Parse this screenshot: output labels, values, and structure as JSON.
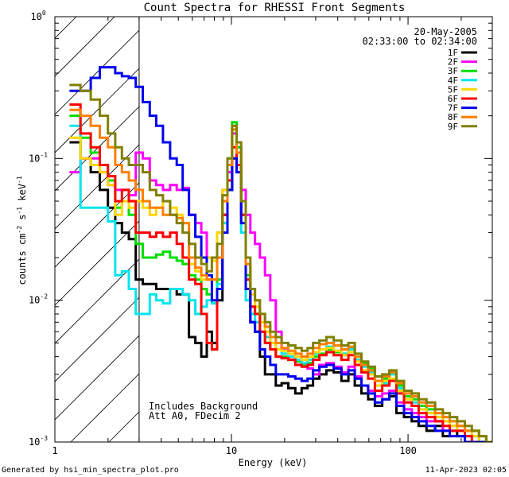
{
  "chart_data": {
    "type": "line",
    "title": "Count Spectra for RHESSI Front Segments",
    "xlabel": "Energy (keV)",
    "ylabel_parts": [
      "counts cm",
      "-2",
      " s",
      "-1",
      " keV",
      "-1"
    ],
    "xscale": "log",
    "yscale": "log",
    "xlim": [
      1,
      300
    ],
    "ylim": [
      0.001,
      1
    ],
    "x_ticks": [
      {
        "value": 1,
        "label": "1"
      },
      {
        "value": 10,
        "label": "10"
      },
      {
        "value": 100,
        "label": "100"
      }
    ],
    "y_ticks": [
      {
        "value": 0.001,
        "base": "10",
        "exp": "-3"
      },
      {
        "value": 0.01,
        "base": "10",
        "exp": "-2"
      },
      {
        "value": 0.1,
        "base": "10",
        "exp": "-1"
      },
      {
        "value": 1,
        "base": "10",
        "exp": "0"
      }
    ],
    "date": "20-May-2005",
    "time_range": "02:33:00 to 02:34:00",
    "shaded_region_keV": [
      1,
      3
    ],
    "annotations": [
      "Includes Background",
      "Att A0, FDecim 2"
    ],
    "footer_left": "Generated by hsi_min_spectra_plot.pro",
    "footer_right": "11-Apr-2023 02:05",
    "energy_bins": [
      1.3,
      1.5,
      1.7,
      1.9,
      2.1,
      2.3,
      2.5,
      2.75,
      3.0,
      3.3,
      3.6,
      3.9,
      4.3,
      4.7,
      5.1,
      5.5,
      6.0,
      6.5,
      7.0,
      7.5,
      8.0,
      8.6,
      9.2,
      9.8,
      10.4,
      11.0,
      11.7,
      12.4,
      13.2,
      14.0,
      15.0,
      16.0,
      17.2,
      18.5,
      20,
      22,
      24,
      26,
      28,
      30,
      33,
      36,
      40,
      44,
      48,
      52,
      57,
      62,
      68,
      75,
      82,
      90,
      100,
      110,
      120,
      135,
      150,
      165,
      180,
      200,
      220,
      240,
      265,
      290
    ],
    "series": [
      {
        "name": "1F",
        "color": "#000000",
        "values": [
          0.13,
          0.1,
          0.08,
          0.06,
          0.045,
          0.035,
          0.03,
          0.027,
          0.014,
          0.013,
          0.013,
          0.012,
          0.012,
          0.012,
          0.011,
          0.011,
          0.0055,
          0.005,
          0.004,
          0.006,
          0.005,
          0.01,
          0.04,
          0.06,
          0.1,
          0.09,
          0.04,
          0.012,
          0.007,
          0.006,
          0.004,
          0.003,
          0.003,
          0.0025,
          0.0026,
          0.0024,
          0.0022,
          0.0024,
          0.0025,
          0.0028,
          0.003,
          0.0032,
          0.0031,
          0.0027,
          0.003,
          0.0025,
          0.0022,
          0.002,
          0.0018,
          0.002,
          0.0021,
          0.0016,
          0.0015,
          0.0014,
          0.0013,
          0.0012,
          0.0013,
          0.0011,
          0.0012,
          0.0011,
          0.001,
          0.001,
          0.001,
          0.001
        ]
      },
      {
        "name": "2F",
        "color": "#ff00ff",
        "values": [
          0.08,
          0.1,
          0.1,
          0.08,
          0.065,
          0.06,
          0.06,
          0.055,
          0.11,
          0.1,
          0.07,
          0.065,
          0.06,
          0.065,
          0.06,
          0.062,
          0.04,
          0.035,
          0.03,
          0.02,
          0.02,
          0.03,
          0.06,
          0.08,
          0.15,
          0.12,
          0.06,
          0.04,
          0.03,
          0.025,
          0.02,
          0.015,
          0.01,
          0.006,
          0.0045,
          0.004,
          0.0037,
          0.0035,
          0.0033,
          0.003,
          0.0035,
          0.0036,
          0.0034,
          0.0031,
          0.0034,
          0.0029,
          0.0025,
          0.0023,
          0.0021,
          0.0022,
          0.0023,
          0.0019,
          0.0017,
          0.0016,
          0.0015,
          0.0014,
          0.0014,
          0.0012,
          0.0013,
          0.0012,
          0.0011,
          0.0011,
          0.001,
          0.001
        ]
      },
      {
        "name": "3F",
        "color": "#00dd00",
        "values": [
          0.2,
          0.14,
          0.11,
          0.09,
          0.07,
          0.045,
          0.05,
          0.04,
          0.025,
          0.02,
          0.02,
          0.021,
          0.022,
          0.02,
          0.019,
          0.018,
          0.015,
          0.014,
          0.012,
          0.011,
          0.01,
          0.014,
          0.05,
          0.1,
          0.18,
          0.12,
          0.05,
          0.015,
          0.009,
          0.008,
          0.006,
          0.005,
          0.0045,
          0.004,
          0.004,
          0.0038,
          0.0037,
          0.0035,
          0.0036,
          0.004,
          0.0042,
          0.0045,
          0.0043,
          0.0041,
          0.0046,
          0.004,
          0.0036,
          0.0033,
          0.0027,
          0.0028,
          0.0031,
          0.0025,
          0.0021,
          0.002,
          0.0018,
          0.0017,
          0.0016,
          0.0015,
          0.0014,
          0.0013,
          0.0012,
          0.0012,
          0.0011,
          0.001
        ]
      },
      {
        "name": "4F",
        "color": "#00e5ee",
        "values": [
          0.17,
          0.045,
          0.045,
          0.045,
          0.036,
          0.015,
          0.016,
          0.012,
          0.008,
          0.008,
          0.011,
          0.01,
          0.0095,
          0.012,
          0.012,
          0.011,
          0.01,
          0.008,
          0.009,
          0.01,
          0.0095,
          0.013,
          0.035,
          0.07,
          0.12,
          0.08,
          0.03,
          0.01,
          0.008,
          0.007,
          0.006,
          0.0055,
          0.005,
          0.0045,
          0.0042,
          0.004,
          0.0038,
          0.0036,
          0.0038,
          0.0042,
          0.0045,
          0.0047,
          0.0044,
          0.0042,
          0.0045,
          0.0038,
          0.0034,
          0.0031,
          0.0025,
          0.0026,
          0.003,
          0.0024,
          0.002,
          0.0019,
          0.0017,
          0.0016,
          0.0015,
          0.0014,
          0.0013,
          0.0012,
          0.0012,
          0.0011,
          0.001,
          0.001
        ]
      },
      {
        "name": "5F",
        "color": "#ffd700",
        "values": [
          0.14,
          0.1,
          0.09,
          0.08,
          0.065,
          0.04,
          0.05,
          0.045,
          0.05,
          0.045,
          0.04,
          0.045,
          0.05,
          0.045,
          0.04,
          0.035,
          0.018,
          0.016,
          0.014,
          0.02,
          0.019,
          0.03,
          0.06,
          0.09,
          0.16,
          0.11,
          0.05,
          0.018,
          0.011,
          0.009,
          0.007,
          0.006,
          0.005,
          0.0045,
          0.0044,
          0.0042,
          0.004,
          0.0038,
          0.004,
          0.0043,
          0.0045,
          0.0046,
          0.0044,
          0.0041,
          0.0043,
          0.0037,
          0.0032,
          0.003,
          0.0025,
          0.0027,
          0.0028,
          0.0023,
          0.002,
          0.0018,
          0.0017,
          0.0016,
          0.0015,
          0.0014,
          0.0013,
          0.0012,
          0.0012,
          0.0011,
          0.001,
          0.001
        ]
      },
      {
        "name": "6F",
        "color": "#ff0000",
        "values": [
          0.24,
          0.15,
          0.12,
          0.09,
          0.075,
          0.05,
          0.06,
          0.05,
          0.03,
          0.03,
          0.028,
          0.03,
          0.028,
          0.03,
          0.025,
          0.02,
          0.014,
          0.013,
          0.008,
          0.005,
          0.0045,
          0.012,
          0.04,
          0.07,
          0.12,
          0.09,
          0.04,
          0.014,
          0.009,
          0.008,
          0.006,
          0.005,
          0.0045,
          0.004,
          0.0039,
          0.0038,
          0.0035,
          0.0034,
          0.0035,
          0.0038,
          0.0041,
          0.0043,
          0.0041,
          0.0038,
          0.0041,
          0.0035,
          0.0031,
          0.0028,
          0.0023,
          0.0025,
          0.0027,
          0.0022,
          0.0019,
          0.0018,
          0.0016,
          0.0015,
          0.0014,
          0.0013,
          0.0012,
          0.0012,
          0.0011,
          0.001,
          0.001,
          0.001
        ]
      },
      {
        "name": "7F",
        "color": "#0000ee",
        "values": [
          0.3,
          0.3,
          0.37,
          0.44,
          0.44,
          0.4,
          0.38,
          0.37,
          0.32,
          0.25,
          0.2,
          0.17,
          0.13,
          0.1,
          0.09,
          0.06,
          0.04,
          0.028,
          0.02,
          0.015,
          0.01,
          0.012,
          0.03,
          0.06,
          0.1,
          0.08,
          0.035,
          0.012,
          0.007,
          0.006,
          0.0045,
          0.004,
          0.0035,
          0.003,
          0.003,
          0.0029,
          0.0028,
          0.0027,
          0.0028,
          0.0032,
          0.0034,
          0.0035,
          0.0033,
          0.003,
          0.0032,
          0.0028,
          0.0025,
          0.0022,
          0.0019,
          0.002,
          0.0022,
          0.0018,
          0.0016,
          0.0015,
          0.0014,
          0.0013,
          0.0012,
          0.0012,
          0.0011,
          0.0011,
          0.001,
          0.001,
          0.001,
          0.001
        ]
      },
      {
        "name": "8F",
        "color": "#ff7f00",
        "values": [
          0.22,
          0.2,
          0.17,
          0.14,
          0.12,
          0.09,
          0.08,
          0.07,
          0.06,
          0.05,
          0.045,
          0.045,
          0.04,
          0.04,
          0.038,
          0.035,
          0.02,
          0.017,
          0.015,
          0.014,
          0.014,
          0.02,
          0.05,
          0.09,
          0.16,
          0.11,
          0.05,
          0.018,
          0.012,
          0.01,
          0.008,
          0.0065,
          0.0055,
          0.005,
          0.0046,
          0.0044,
          0.0042,
          0.004,
          0.0042,
          0.0046,
          0.0049,
          0.005,
          0.0048,
          0.0045,
          0.0047,
          0.004,
          0.0035,
          0.0032,
          0.0027,
          0.0029,
          0.0031,
          0.0026,
          0.0022,
          0.0021,
          0.0019,
          0.0018,
          0.0016,
          0.0015,
          0.0014,
          0.0013,
          0.0012,
          0.0012,
          0.0011,
          0.001
        ]
      },
      {
        "name": "9F",
        "color": "#808000",
        "values": [
          0.33,
          0.3,
          0.26,
          0.2,
          0.15,
          0.12,
          0.1,
          0.09,
          0.09,
          0.08,
          0.06,
          0.055,
          0.05,
          0.04,
          0.035,
          0.03,
          0.025,
          0.02,
          0.018,
          0.016,
          0.02,
          0.025,
          0.055,
          0.1,
          0.17,
          0.13,
          0.05,
          0.02,
          0.012,
          0.01,
          0.008,
          0.007,
          0.006,
          0.0055,
          0.005,
          0.0048,
          0.0046,
          0.0044,
          0.0046,
          0.005,
          0.0052,
          0.0055,
          0.0052,
          0.0048,
          0.005,
          0.0042,
          0.0037,
          0.0034,
          0.0029,
          0.003,
          0.0032,
          0.0027,
          0.0023,
          0.0022,
          0.002,
          0.0019,
          0.0017,
          0.0016,
          0.0015,
          0.0014,
          0.0013,
          0.0012,
          0.0011,
          0.001
        ]
      }
    ]
  }
}
